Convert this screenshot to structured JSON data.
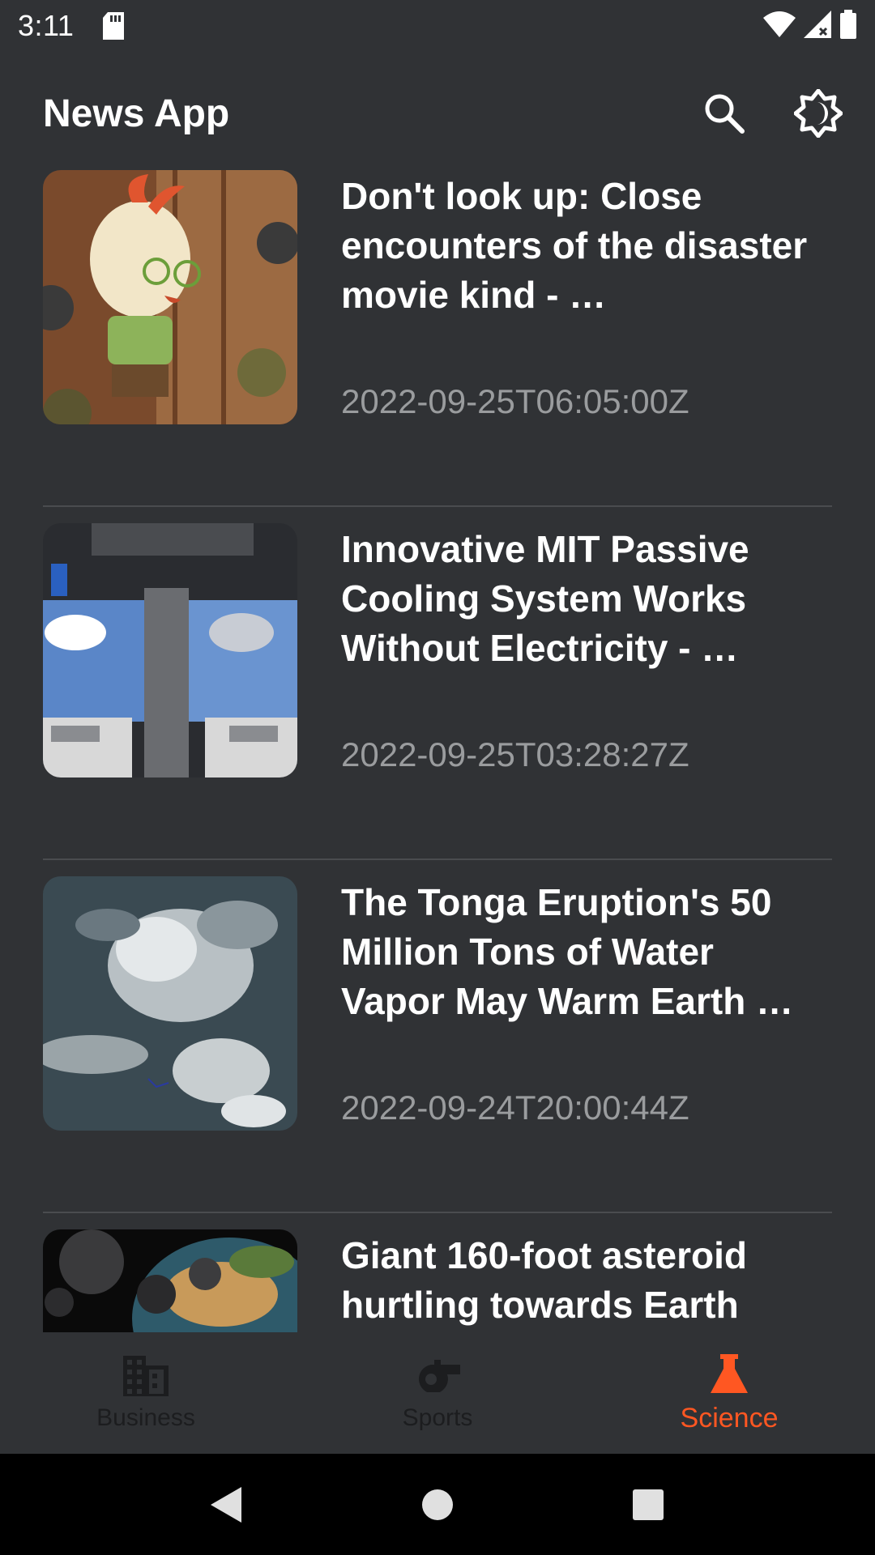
{
  "status_bar": {
    "time": "3:11",
    "icons": [
      "sd-card-icon",
      "wifi-icon",
      "signal-icon",
      "battery-icon"
    ]
  },
  "app_bar": {
    "title": "News App",
    "actions": [
      "search-icon",
      "brightness-icon"
    ]
  },
  "articles": [
    {
      "title": "Don't look up: Close encounters of the disaster movie kind - …",
      "date": "2022-09-25T06:05:00Z",
      "thumbnail": "cartoon-chicken"
    },
    {
      "title": "Innovative MIT Passive Cooling System Works Without Electricity - …",
      "date": "2022-09-25T03:28:27Z",
      "thumbnail": "cooling-system-experiment"
    },
    {
      "title": "The Tonga Eruption's 50 Million Tons of Water Vapor May Warm Earth …",
      "date": "2022-09-24T20:00:44Z",
      "thumbnail": "satellite-clouds"
    },
    {
      "title": "Giant 160-foot asteroid hurtling towards Earth",
      "date": "",
      "thumbnail": "asteroids-earth"
    }
  ],
  "bottom_nav": {
    "items": [
      {
        "label": "Business",
        "icon": "building-icon",
        "active": false
      },
      {
        "label": "Sports",
        "icon": "whistle-icon",
        "active": false
      },
      {
        "label": "Science",
        "icon": "flask-icon",
        "active": true
      }
    ]
  },
  "colors": {
    "background": "#303235",
    "accent": "#ff5722",
    "date_text": "#9a9c9e",
    "inactive_nav": "#1c1d1f"
  }
}
